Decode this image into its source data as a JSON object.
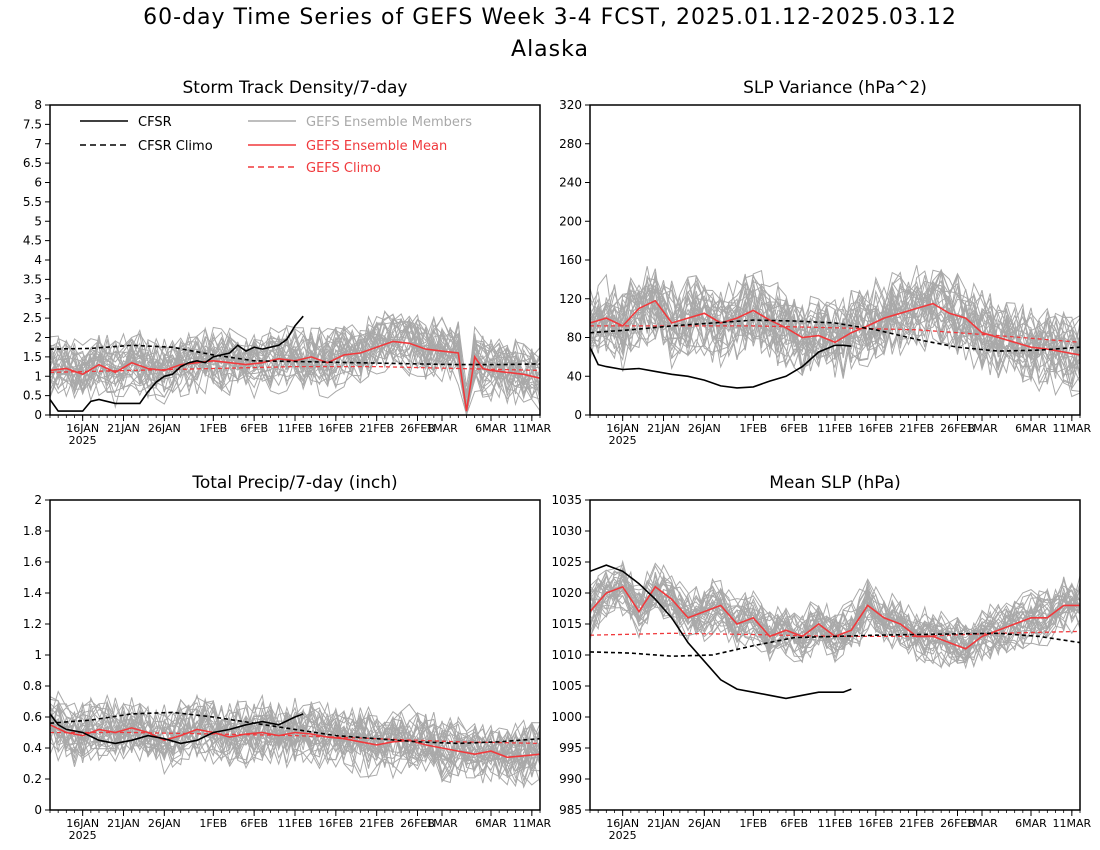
{
  "title": "60-day Time Series of GEFS Week 3-4 FCST, 2025.01.12-2025.03.12",
  "subtitle": "Alaska",
  "colors": {
    "cfsr": "#000000",
    "members": "#a9a9a9",
    "ens_mean": "#f0393c",
    "gefs_climo": "#f0393c"
  },
  "legend": {
    "placement": "top, inside first panel",
    "entries": [
      {
        "label": "CFSR",
        "style": "solid",
        "color": "#000000"
      },
      {
        "label": "CFSR Climo",
        "style": "dashed",
        "color": "#000000"
      },
      {
        "label": "GEFS Ensemble Members",
        "style": "solid",
        "color": "#a9a9a9"
      },
      {
        "label": "GEFS Ensemble Mean",
        "style": "solid",
        "color": "#f0393c"
      },
      {
        "label": "GEFS Climo",
        "style": "dashed",
        "color": "#f0393c"
      }
    ]
  },
  "chart_data": [
    {
      "type": "line",
      "title": "Storm Track Density/7-day",
      "ylim": [
        0,
        8
      ],
      "yticks": [
        "0",
        "0.5",
        "1",
        "1.5",
        "2",
        "2.5",
        "3",
        "3.5",
        "4",
        "4.5",
        "5",
        "5.5",
        "6",
        "6.5",
        "7",
        "7.5",
        "8"
      ],
      "xlim_days": [
        0,
        60
      ],
      "xticks": [
        "16JAN",
        "21JAN",
        "26JAN",
        "1FEB",
        "6FEB",
        "11FEB",
        "16FEB",
        "21FEB",
        "26FEB",
        "1MAR",
        "6MAR",
        "11MAR"
      ],
      "xtick_sublabel": "2025",
      "series": [
        {
          "name": "CFSR",
          "x_days": [
            0,
            1,
            2,
            4,
            5,
            6,
            8,
            9,
            10,
            11,
            12,
            13,
            14,
            15,
            16,
            17,
            18,
            19,
            20,
            21,
            22,
            23,
            24,
            25,
            26,
            27,
            28,
            29,
            30,
            31
          ],
          "values": [
            0.4,
            0.1,
            0.1,
            0.1,
            0.35,
            0.4,
            0.3,
            0.3,
            0.3,
            0.3,
            0.6,
            0.85,
            1.0,
            1.05,
            1.25,
            1.35,
            1.4,
            1.35,
            1.5,
            1.55,
            1.6,
            1.8,
            1.65,
            1.75,
            1.7,
            1.75,
            1.8,
            1.95,
            2.3,
            2.55
          ]
        },
        {
          "name": "CFSR Climo",
          "x_days": [
            0,
            5,
            10,
            15,
            20,
            25,
            30,
            35,
            40,
            45,
            50,
            55,
            60
          ],
          "values": [
            1.7,
            1.72,
            1.8,
            1.75,
            1.55,
            1.4,
            1.38,
            1.36,
            1.34,
            1.32,
            1.3,
            1.3,
            1.32
          ]
        },
        {
          "name": "GEFS Ensemble Mean",
          "x_days": [
            0,
            2,
            4,
            6,
            8,
            10,
            12,
            14,
            16,
            18,
            20,
            22,
            24,
            26,
            28,
            30,
            32,
            34,
            36,
            38,
            40,
            42,
            44,
            46,
            48,
            50,
            51,
            52,
            53,
            54,
            56,
            58,
            60
          ],
          "values": [
            1.15,
            1.2,
            1.05,
            1.3,
            1.1,
            1.35,
            1.2,
            1.15,
            1.3,
            1.35,
            1.4,
            1.35,
            1.3,
            1.35,
            1.45,
            1.4,
            1.5,
            1.35,
            1.55,
            1.6,
            1.75,
            1.9,
            1.85,
            1.7,
            1.65,
            1.6,
            0.1,
            1.5,
            1.2,
            1.15,
            1.1,
            1.05,
            0.95
          ]
        },
        {
          "name": "GEFS Climo",
          "x_days": [
            0,
            10,
            20,
            30,
            40,
            50,
            60
          ],
          "values": [
            1.1,
            1.15,
            1.2,
            1.25,
            1.25,
            1.2,
            1.15
          ]
        }
      ]
    },
    {
      "type": "line",
      "title": "SLP Variance (hPa^2)",
      "ylim": [
        0,
        320
      ],
      "yticks": [
        "0",
        "40",
        "80",
        "120",
        "160",
        "200",
        "240",
        "280",
        "320"
      ],
      "xlim_days": [
        0,
        60
      ],
      "xticks": [
        "16JAN",
        "21JAN",
        "26JAN",
        "1FEB",
        "6FEB",
        "11FEB",
        "16FEB",
        "21FEB",
        "26FEB",
        "1MAR",
        "6MAR",
        "11MAR"
      ],
      "xtick_sublabel": "2025",
      "series": [
        {
          "name": "CFSR",
          "x_days": [
            0,
            1,
            2,
            4,
            6,
            8,
            10,
            12,
            14,
            16,
            18,
            20,
            22,
            24,
            26,
            28,
            30,
            31,
            32
          ],
          "values": [
            70,
            52,
            50,
            47,
            48,
            45,
            42,
            40,
            36,
            30,
            28,
            29,
            35,
            40,
            50,
            65,
            72,
            72,
            71
          ]
        },
        {
          "name": "CFSR Climo",
          "x_days": [
            0,
            5,
            10,
            15,
            20,
            25,
            30,
            35,
            40,
            45,
            50,
            55,
            60
          ],
          "values": [
            85,
            88,
            92,
            95,
            98,
            97,
            95,
            88,
            78,
            70,
            66,
            67,
            70
          ]
        },
        {
          "name": "GEFS Ensemble Mean",
          "x_days": [
            0,
            2,
            4,
            6,
            8,
            10,
            12,
            14,
            16,
            18,
            20,
            22,
            24,
            26,
            28,
            30,
            32,
            34,
            36,
            38,
            40,
            42,
            44,
            46,
            48,
            50,
            52,
            54,
            56,
            58,
            60
          ],
          "values": [
            95,
            100,
            92,
            110,
            118,
            95,
            100,
            105,
            95,
            100,
            108,
            98,
            90,
            80,
            82,
            75,
            85,
            92,
            100,
            105,
            110,
            115,
            105,
            100,
            85,
            80,
            75,
            70,
            68,
            65,
            62
          ]
        },
        {
          "name": "GEFS Climo",
          "x_days": [
            0,
            10,
            20,
            30,
            40,
            50,
            60
          ],
          "values": [
            92,
            92,
            92,
            90,
            88,
            82,
            75
          ]
        }
      ]
    },
    {
      "type": "line",
      "title": "Total Precip/7-day (inch)",
      "ylim": [
        0,
        2
      ],
      "yticks": [
        "0",
        "0.2",
        "0.4",
        "0.6",
        "0.8",
        "1",
        "1.2",
        "1.4",
        "1.6",
        "1.8",
        "2"
      ],
      "xlim_days": [
        0,
        60
      ],
      "xticks": [
        "16JAN",
        "21JAN",
        "26JAN",
        "1FEB",
        "6FEB",
        "11FEB",
        "16FEB",
        "21FEB",
        "26FEB",
        "1MAR",
        "6MAR",
        "11MAR"
      ],
      "xtick_sublabel": "2025",
      "series": [
        {
          "name": "CFSR",
          "x_days": [
            0,
            1,
            2,
            4,
            6,
            8,
            10,
            12,
            14,
            16,
            18,
            20,
            22,
            24,
            26,
            28,
            30,
            31
          ],
          "values": [
            0.62,
            0.55,
            0.52,
            0.5,
            0.45,
            0.43,
            0.45,
            0.48,
            0.46,
            0.43,
            0.45,
            0.5,
            0.52,
            0.55,
            0.57,
            0.55,
            0.6,
            0.62
          ]
        },
        {
          "name": "CFSR Climo",
          "x_days": [
            0,
            5,
            10,
            15,
            20,
            25,
            30,
            35,
            40,
            45,
            50,
            55,
            60
          ],
          "values": [
            0.56,
            0.58,
            0.62,
            0.63,
            0.6,
            0.56,
            0.52,
            0.48,
            0.46,
            0.44,
            0.43,
            0.44,
            0.46
          ]
        },
        {
          "name": "GEFS Ensemble Mean",
          "x_days": [
            0,
            2,
            4,
            6,
            8,
            10,
            12,
            14,
            16,
            18,
            20,
            22,
            24,
            26,
            28,
            30,
            32,
            34,
            36,
            38,
            40,
            42,
            44,
            46,
            48,
            50,
            52,
            54,
            56,
            58,
            60
          ],
          "values": [
            0.55,
            0.5,
            0.48,
            0.52,
            0.5,
            0.53,
            0.5,
            0.45,
            0.48,
            0.52,
            0.5,
            0.47,
            0.49,
            0.5,
            0.48,
            0.5,
            0.49,
            0.47,
            0.46,
            0.44,
            0.42,
            0.44,
            0.45,
            0.42,
            0.4,
            0.38,
            0.36,
            0.38,
            0.34,
            0.35,
            0.36
          ]
        },
        {
          "name": "GEFS Climo",
          "x_days": [
            0,
            10,
            20,
            30,
            40,
            50,
            60
          ],
          "values": [
            0.5,
            0.5,
            0.49,
            0.48,
            0.46,
            0.44,
            0.43
          ]
        }
      ]
    },
    {
      "type": "line",
      "title": "Mean SLP (hPa)",
      "ylim": [
        985,
        1035
      ],
      "yticks": [
        "985",
        "990",
        "995",
        "1000",
        "1005",
        "1010",
        "1015",
        "1020",
        "1025",
        "1030",
        "1035"
      ],
      "xlim_days": [
        0,
        60
      ],
      "xticks": [
        "16JAN",
        "21JAN",
        "26JAN",
        "1FEB",
        "6FEB",
        "11FEB",
        "16FEB",
        "21FEB",
        "26FEB",
        "1MAR",
        "6MAR",
        "11MAR"
      ],
      "xtick_sublabel": "2025",
      "series": [
        {
          "name": "CFSR",
          "x_days": [
            0,
            2,
            4,
            6,
            8,
            10,
            12,
            14,
            16,
            18,
            20,
            22,
            24,
            26,
            28,
            30,
            31,
            32
          ],
          "values": [
            1023.5,
            1024.5,
            1023.5,
            1021.5,
            1019,
            1016,
            1012,
            1009,
            1006,
            1004.5,
            1004,
            1003.5,
            1003,
            1003.5,
            1004,
            1004,
            1004,
            1004.5
          ]
        },
        {
          "name": "CFSR Climo",
          "x_days": [
            0,
            5,
            10,
            15,
            20,
            25,
            30,
            35,
            40,
            45,
            50,
            55,
            60
          ],
          "values": [
            1010.5,
            1010.3,
            1009.8,
            1010,
            1011.5,
            1012.8,
            1013,
            1013.2,
            1013.3,
            1013.4,
            1013.5,
            1013,
            1012
          ]
        },
        {
          "name": "GEFS Ensemble Mean",
          "x_days": [
            0,
            2,
            4,
            6,
            8,
            10,
            12,
            14,
            16,
            18,
            20,
            22,
            24,
            26,
            28,
            30,
            32,
            34,
            36,
            38,
            40,
            42,
            44,
            46,
            48,
            50,
            52,
            54,
            56,
            58,
            60
          ],
          "values": [
            1017,
            1020,
            1021,
            1017,
            1021,
            1019,
            1016,
            1017,
            1018,
            1015,
            1016,
            1013,
            1014,
            1013,
            1015,
            1013,
            1014,
            1018,
            1016,
            1015,
            1013,
            1013,
            1012,
            1011,
            1013,
            1014,
            1015,
            1016,
            1016,
            1018,
            1018
          ]
        },
        {
          "name": "GEFS Climo",
          "x_days": [
            0,
            10,
            20,
            30,
            40,
            50,
            60
          ],
          "values": [
            1013.2,
            1013.5,
            1013.3,
            1013,
            1013,
            1013.5,
            1013.8
          ]
        }
      ]
    }
  ]
}
